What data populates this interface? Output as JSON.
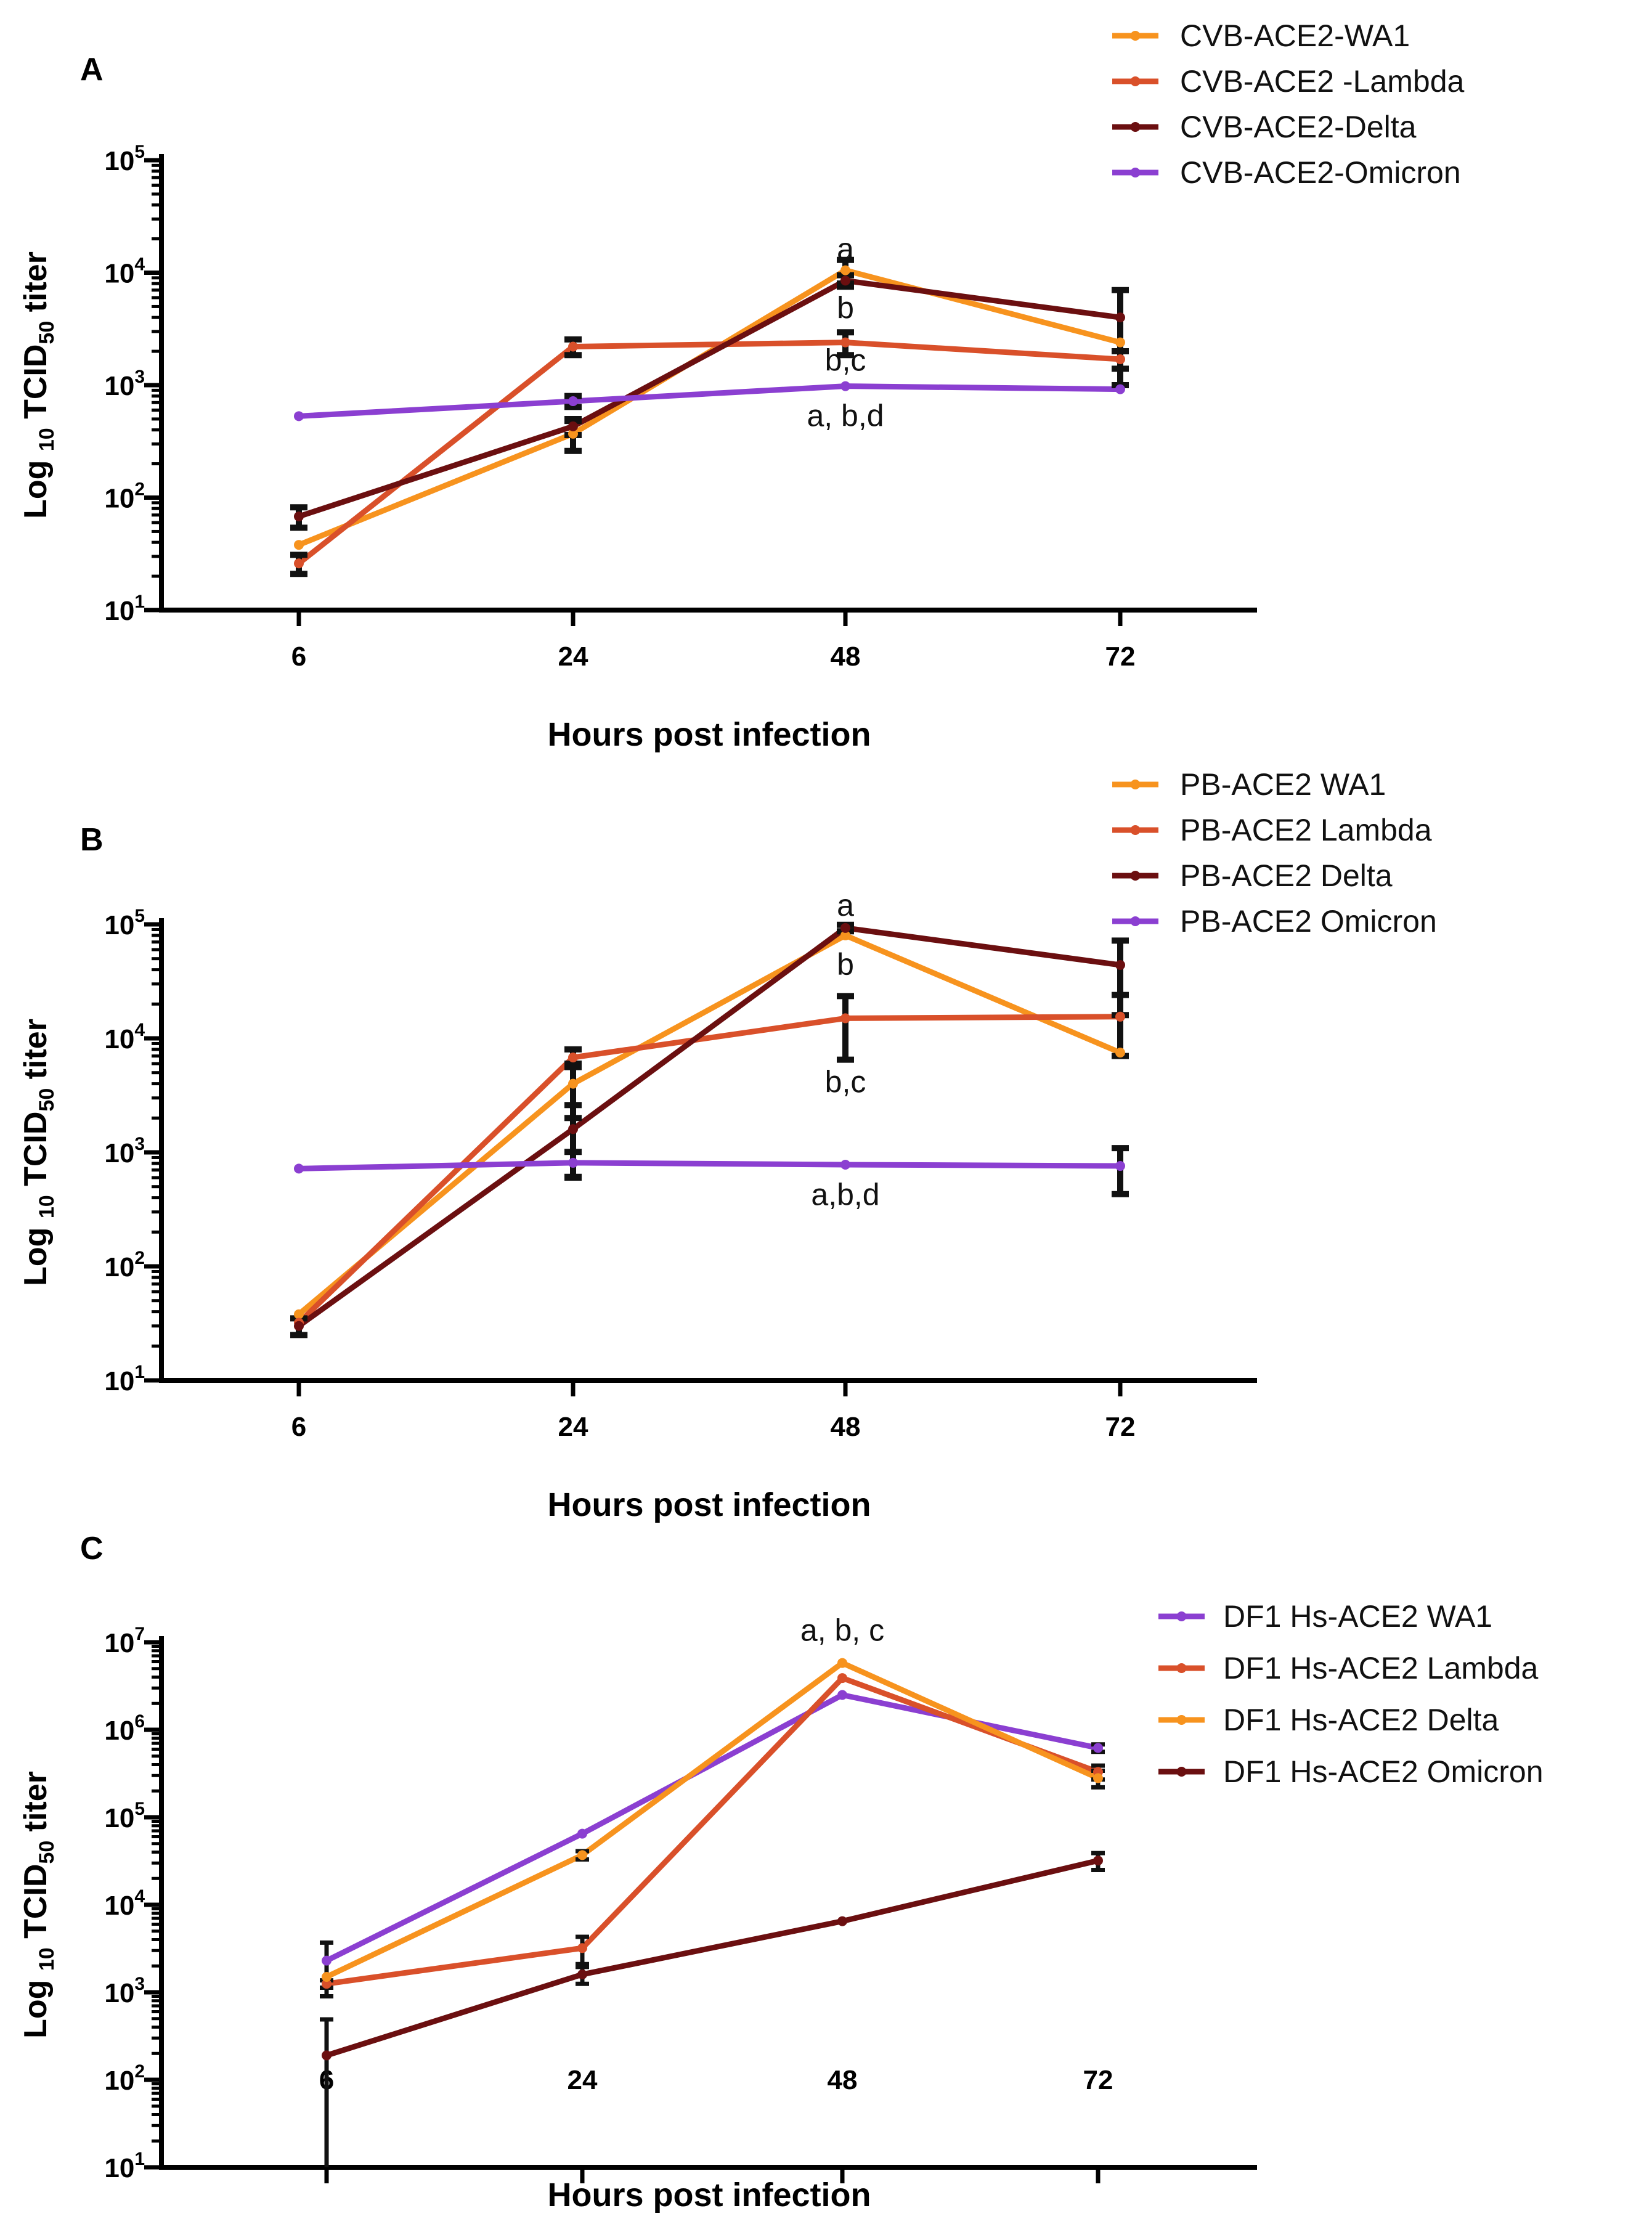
{
  "figure": {
    "x_ticks": [
      "6",
      "24",
      "48",
      "72"
    ]
  },
  "chart_data": [
    {
      "type": "line",
      "panel_label": "A",
      "xlabel": "Hours post infection",
      "ylabel": {
        "prefix": "Log ",
        "sub1": "10",
        "mid": " TCID",
        "sub2": "50",
        "suffix": " titer"
      },
      "yscale": "log",
      "ylim": [
        10,
        100000
      ],
      "y_tick_exponents": [
        "1",
        "2",
        "3",
        "4",
        "5"
      ],
      "x": [
        "6",
        "24",
        "48",
        "72"
      ],
      "series": [
        {
          "name": "CVB-ACE2-WA1",
          "color": "#F7931E",
          "values": [
            38,
            370,
            10500,
            2400
          ],
          "error": [
            null,
            110,
            2500,
            null
          ]
        },
        {
          "name": "CVB-ACE2 -Lambda",
          "color": "#D9502A",
          "values": [
            26,
            2200,
            2400,
            1700
          ],
          "error": [
            5,
            350,
            550,
            300
          ]
        },
        {
          "name": "CVB-ACE2-Delta",
          "color": "#6B0F10",
          "values": [
            68,
            430,
            8500,
            4000
          ],
          "error": [
            14,
            70,
            1000,
            3000
          ]
        },
        {
          "name": "CVB-ACE2-Omicron",
          "color": "#8B3FD1",
          "values": [
            530,
            720,
            980,
            920
          ],
          "error": [
            null,
            80,
            null,
            null
          ]
        }
      ],
      "annotations": [
        {
          "text": "a",
          "x": "48",
          "y": 16000
        },
        {
          "text": "b",
          "x": "48",
          "y": 4800
        },
        {
          "text": "b,c",
          "x": "48",
          "y": 1650
        },
        {
          "text": "a, b,d",
          "x": "48",
          "y": 530
        }
      ]
    },
    {
      "type": "line",
      "panel_label": "B",
      "xlabel": "Hours post infection",
      "ylabel": {
        "prefix": "Log ",
        "sub1": "10",
        "mid": " TCID",
        "sub2": "50",
        "suffix": " titer"
      },
      "yscale": "log",
      "ylim": [
        10,
        100000
      ],
      "y_tick_exponents": [
        "1",
        "2",
        "3",
        "4",
        "5"
      ],
      "x": [
        "6",
        "24",
        "48",
        "72"
      ],
      "series": [
        {
          "name": "PB-ACE2 WA1",
          "color": "#F7931E",
          "values": [
            38,
            4000,
            80000,
            7500
          ],
          "error": [
            null,
            2000,
            null,
            null
          ]
        },
        {
          "name": "PB-ACE2 Lambda",
          "color": "#D9502A",
          "values": [
            32,
            6800,
            15000,
            15500
          ],
          "error": [
            null,
            1200,
            8500,
            8500
          ]
        },
        {
          "name": "PB-ACE2  Delta",
          "color": "#6B0F10",
          "values": [
            30,
            1600,
            93000,
            44000
          ],
          "error": [
            5,
            1000,
            6000,
            28000
          ]
        },
        {
          "name": "PB-ACE2 Omicron",
          "color": "#8B3FD1",
          "values": [
            720,
            810,
            780,
            760
          ],
          "error": [
            null,
            200,
            null,
            330
          ]
        }
      ],
      "annotations": [
        {
          "text": "a",
          "x": "48",
          "y": 145000
        },
        {
          "text": "b",
          "x": "48",
          "y": 44000
        },
        {
          "text": "b,c",
          "x": "48",
          "y": 4100
        },
        {
          "text": "a,b,d",
          "x": "48",
          "y": 420
        }
      ]
    },
    {
      "type": "line",
      "panel_label": "C",
      "xlabel": "Hours post infection",
      "ylabel": {
        "prefix": "Log ",
        "sub1": "10",
        "mid": " TCID",
        "sub2": "50",
        "suffix": " titer"
      },
      "yscale": "log",
      "ylim": [
        10,
        10000000
      ],
      "y_tick_exponents": [
        "1",
        "2",
        "3",
        "4",
        "5",
        "6",
        "7"
      ],
      "x": [
        "6",
        "24",
        "48",
        "72"
      ],
      "series": [
        {
          "name": "DF1 Hs-ACE2 WA1",
          "color": "#8B3FD1",
          "values": [
            2300,
            65000,
            2500000,
            620000
          ],
          "error": [
            1400,
            null,
            null,
            60000
          ]
        },
        {
          "name": "DF1 Hs-ACE2 Lambda",
          "color": "#D9502A",
          "values": [
            1250,
            3200,
            3900000,
            330000
          ],
          "error": [
            120,
            1100,
            null,
            60000
          ]
        },
        {
          "name": "DF1 Hs-ACE2 Delta",
          "color": "#F7931E",
          "values": [
            1500,
            37000,
            5800000,
            280000
          ],
          "error": [
            null,
            4000,
            null,
            60000
          ]
        },
        {
          "name": "DF1 Hs-ACE2 Omicron",
          "color": "#6B0F10",
          "values": [
            190,
            1600,
            6500,
            32000
          ],
          "error": [
            300,
            350,
            null,
            7000
          ]
        }
      ],
      "annotations": [
        {
          "text": "a, b, c",
          "x": "48",
          "y": 13500000
        }
      ]
    }
  ]
}
